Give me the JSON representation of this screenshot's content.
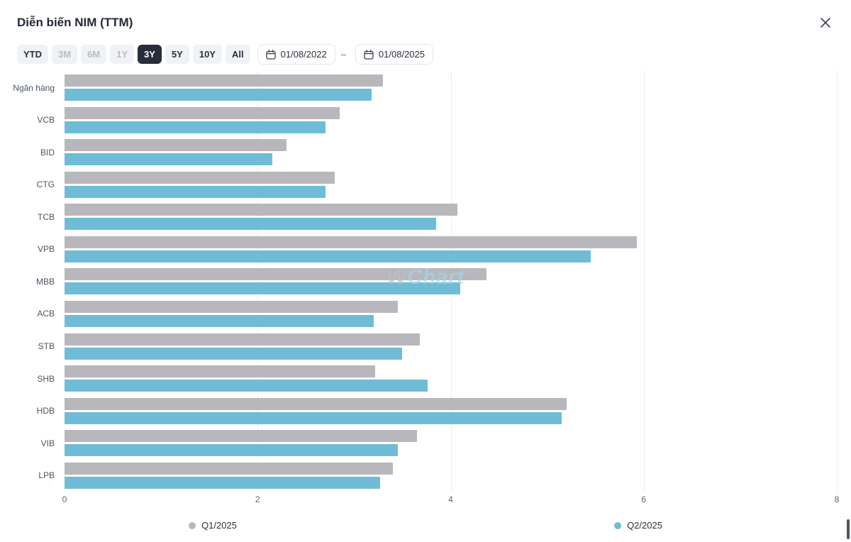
{
  "header": {
    "title": "Diễn biến NIM (TTM)"
  },
  "toolbar": {
    "ranges": [
      {
        "label": "YTD",
        "state": "normal"
      },
      {
        "label": "3M",
        "state": "muted"
      },
      {
        "label": "6M",
        "state": "muted"
      },
      {
        "label": "1Y",
        "state": "muted"
      },
      {
        "label": "3Y",
        "state": "active"
      },
      {
        "label": "5Y",
        "state": "normal"
      },
      {
        "label": "10Y",
        "state": "normal"
      },
      {
        "label": "All",
        "state": "normal"
      }
    ],
    "date_from": "01/08/2022",
    "date_to": "01/08/2025",
    "separator": "–"
  },
  "chart_data": {
    "type": "bar",
    "orientation": "horizontal",
    "categories": [
      "Ngân hàng",
      "VCB",
      "BID",
      "CTG",
      "TCB",
      "VPB",
      "MBB",
      "ACB",
      "STB",
      "SHB",
      "HDB",
      "VIB",
      "LPB"
    ],
    "series": [
      {
        "name": "Q1/2025",
        "color": "#b7b7bc",
        "values": [
          3.3,
          2.85,
          2.3,
          2.8,
          4.07,
          5.93,
          4.37,
          3.45,
          3.68,
          3.22,
          5.2,
          3.65,
          3.4
        ]
      },
      {
        "name": "Q2/2025",
        "color": "#70bcd6",
        "values": [
          3.18,
          2.7,
          2.15,
          2.7,
          3.85,
          5.45,
          4.1,
          3.2,
          3.5,
          3.76,
          5.15,
          3.45,
          3.27
        ]
      }
    ],
    "xlim": [
      0,
      8
    ],
    "xticks": [
      0,
      2,
      4,
      6,
      8
    ],
    "grid": "dotted-vertical",
    "legend_position": "bottom",
    "watermark_parts": [
      {
        "text": "W",
        "color": "#b9c0ca"
      },
      {
        "text": "Chart",
        "color": "#a2d6ec"
      }
    ]
  }
}
